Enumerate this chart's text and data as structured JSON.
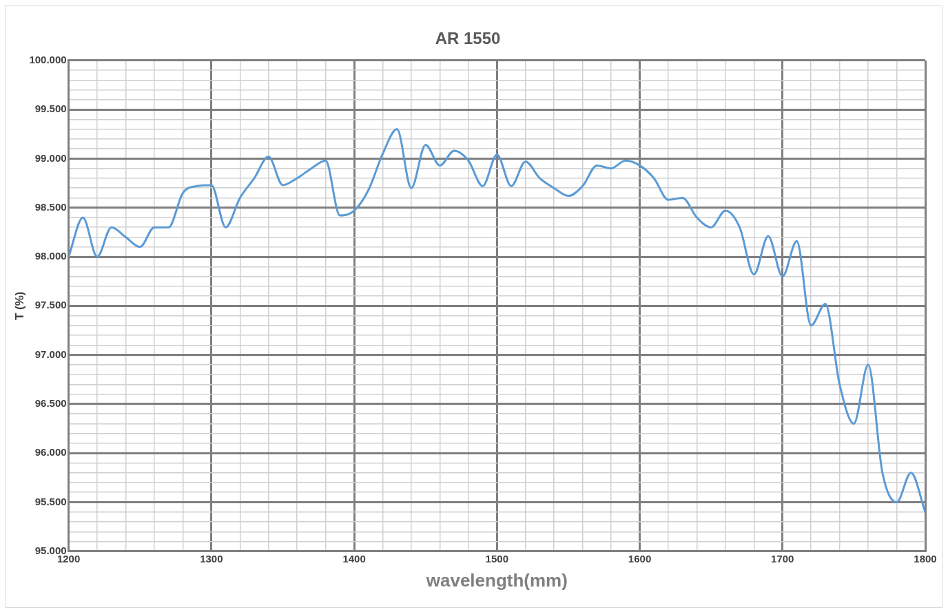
{
  "chart_data": {
    "type": "line",
    "title": "AR 1550",
    "xlabel": "wavelength(mm)",
    "ylabel": "T (%)",
    "x": [
      1200,
      1210,
      1220,
      1230,
      1240,
      1250,
      1260,
      1270,
      1280,
      1290,
      1300,
      1310,
      1320,
      1330,
      1340,
      1350,
      1360,
      1370,
      1380,
      1390,
      1400,
      1410,
      1420,
      1430,
      1440,
      1450,
      1460,
      1470,
      1480,
      1490,
      1500,
      1510,
      1520,
      1530,
      1540,
      1550,
      1560,
      1570,
      1580,
      1590,
      1600,
      1610,
      1620,
      1630,
      1640,
      1650,
      1660,
      1670,
      1680,
      1690,
      1700,
      1710,
      1720,
      1730,
      1740,
      1750,
      1760,
      1770,
      1780,
      1790,
      1800
    ],
    "series": [
      {
        "color": "#5b9bd5",
        "values": [
          98.0,
          98.4,
          98.0,
          98.3,
          98.2,
          98.1,
          98.3,
          98.3,
          98.65,
          98.72,
          98.73,
          98.3,
          98.6,
          98.8,
          99.02,
          98.73,
          98.8,
          98.9,
          98.98,
          98.42,
          98.47,
          98.68,
          99.05,
          99.3,
          98.7,
          99.14,
          98.93,
          99.08,
          98.98,
          98.72,
          99.04,
          98.72,
          98.97,
          98.8,
          98.7,
          98.62,
          98.72,
          98.93,
          98.9,
          98.98,
          98.93,
          98.8,
          98.58,
          98.6,
          98.4,
          98.3,
          98.47,
          98.3,
          97.82,
          98.21,
          97.8,
          98.16,
          97.3,
          97.52,
          96.7,
          96.3,
          96.9,
          95.8,
          95.5,
          95.8,
          95.4
        ]
      }
    ],
    "xlim": [
      1200,
      1800
    ],
    "xticks": [
      1200,
      {
        "value": 1220,
        "label": null
      },
      {
        "value": 1240,
        "label": null
      },
      {
        "value": 1260,
        "label": null
      },
      {
        "value": 1280,
        "label": null
      },
      1300,
      {
        "value": 1320,
        "label": null
      },
      {
        "value": 1340,
        "label": null
      },
      {
        "value": 1360,
        "label": null
      },
      {
        "value": 1380,
        "label": null
      },
      1400,
      {
        "value": 1420,
        "label": null
      },
      {
        "value": 1440,
        "label": null
      },
      {
        "value": 1460,
        "label": null
      },
      {
        "value": 1480,
        "label": null
      },
      1500,
      {
        "value": 1520,
        "label": null
      },
      {
        "value": 1540,
        "label": null
      },
      {
        "value": 1560,
        "label": null
      },
      {
        "value": 1580,
        "label": null
      },
      1600,
      {
        "value": 1620,
        "label": null
      },
      {
        "value": 1640,
        "label": null
      },
      {
        "value": 1660,
        "label": null
      },
      {
        "value": 1680,
        "label": null
      },
      1700,
      {
        "value": 1720,
        "label": null
      },
      {
        "value": 1740,
        "label": null
      },
      {
        "value": 1760,
        "label": null
      },
      {
        "value": 1780,
        "label": null
      },
      1800
    ],
    "ylim": [
      95,
      100
    ],
    "yticks": [
      {
        "value": 95,
        "label": "95.000"
      },
      {
        "value": 95.1,
        "label": null
      },
      {
        "value": 95.2,
        "label": null
      },
      {
        "value": 95.3,
        "label": null
      },
      {
        "value": 95.4,
        "label": null
      },
      {
        "value": 95.5,
        "label": "95.500"
      },
      {
        "value": 95.6,
        "label": null
      },
      {
        "value": 95.7,
        "label": null
      },
      {
        "value": 95.8,
        "label": null
      },
      {
        "value": 95.9,
        "label": null
      },
      {
        "value": 96,
        "label": "96.000"
      },
      {
        "value": 96.1,
        "label": null
      },
      {
        "value": 96.2,
        "label": null
      },
      {
        "value": 96.3,
        "label": null
      },
      {
        "value": 96.4,
        "label": null
      },
      {
        "value": 96.5,
        "label": "96.500"
      },
      {
        "value": 96.6,
        "label": null
      },
      {
        "value": 96.7,
        "label": null
      },
      {
        "value": 96.8,
        "label": null
      },
      {
        "value": 96.9,
        "label": null
      },
      {
        "value": 97,
        "label": "97.000"
      },
      {
        "value": 97.1,
        "label": null
      },
      {
        "value": 97.2,
        "label": null
      },
      {
        "value": 97.3,
        "label": null
      },
      {
        "value": 97.4,
        "label": null
      },
      {
        "value": 97.5,
        "label": "97.500"
      },
      {
        "value": 97.6,
        "label": null
      },
      {
        "value": 97.7,
        "label": null
      },
      {
        "value": 97.8,
        "label": null
      },
      {
        "value": 97.9,
        "label": null
      },
      {
        "value": 98,
        "label": "98.000"
      },
      {
        "value": 98.1,
        "label": null
      },
      {
        "value": 98.2,
        "label": null
      },
      {
        "value": 98.3,
        "label": null
      },
      {
        "value": 98.4,
        "label": null
      },
      {
        "value": 98.5,
        "label": "98.500"
      },
      {
        "value": 98.6,
        "label": null
      },
      {
        "value": 98.7,
        "label": null
      },
      {
        "value": 98.8,
        "label": null
      },
      {
        "value": 98.9,
        "label": null
      },
      {
        "value": 99,
        "label": "99.000"
      },
      {
        "value": 99.1,
        "label": null
      },
      {
        "value": 99.2,
        "label": null
      },
      {
        "value": 99.3,
        "label": null
      },
      {
        "value": 99.4,
        "label": null
      },
      {
        "value": 99.5,
        "label": "99.500"
      },
      {
        "value": 99.6,
        "label": null
      },
      {
        "value": 99.7,
        "label": null
      },
      {
        "value": 99.8,
        "label": null
      },
      {
        "value": 99.9,
        "label": null
      },
      {
        "value": 100,
        "label": "100.000"
      }
    ],
    "grid": true,
    "legend": false,
    "marker": "none",
    "line_style": "solid"
  }
}
